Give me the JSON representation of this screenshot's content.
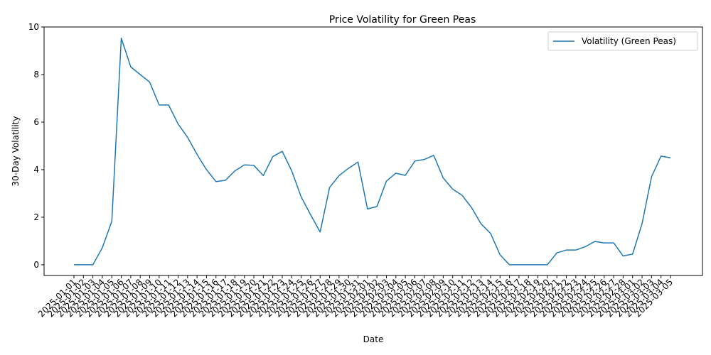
{
  "chart_data": {
    "type": "line",
    "title": "Price Volatility for Green Peas",
    "xlabel": "Date",
    "ylabel": "30-Day Volatility",
    "ylim": [
      -0.45,
      10
    ],
    "yticks": [
      0,
      2,
      4,
      6,
      8,
      10
    ],
    "grid": false,
    "legend_position": "top-right",
    "x": [
      "2025-01-01",
      "2025-01-02",
      "2025-01-03",
      "2025-01-04",
      "2025-01-05",
      "2025-01-06",
      "2025-01-07",
      "2025-01-08",
      "2025-01-09",
      "2025-01-10",
      "2025-01-11",
      "2025-01-12",
      "2025-01-13",
      "2025-01-14",
      "2025-01-15",
      "2025-01-16",
      "2025-01-17",
      "2025-01-18",
      "2025-01-19",
      "2025-01-20",
      "2025-01-21",
      "2025-01-22",
      "2025-01-23",
      "2025-01-24",
      "2025-01-25",
      "2025-01-26",
      "2025-01-27",
      "2025-01-28",
      "2025-01-29",
      "2025-01-30",
      "2025-01-31",
      "2025-02-01",
      "2025-02-02",
      "2025-02-03",
      "2025-02-04",
      "2025-02-05",
      "2025-02-06",
      "2025-02-07",
      "2025-02-08",
      "2025-02-09",
      "2025-02-10",
      "2025-02-11",
      "2025-02-12",
      "2025-02-13",
      "2025-02-14",
      "2025-02-15",
      "2025-02-16",
      "2025-02-17",
      "2025-02-18",
      "2025-02-19",
      "2025-02-20",
      "2025-02-21",
      "2025-02-22",
      "2025-02-23",
      "2025-02-24",
      "2025-02-25",
      "2025-02-26",
      "2025-02-27",
      "2025-02-28",
      "2025-03-01",
      "2025-03-02",
      "2025-03-03",
      "2025-03-04",
      "2025-03-05"
    ],
    "series": [
      {
        "name": "Volatility (Green Peas)",
        "color": "#1f77b4",
        "values": [
          0.0,
          0.0,
          0.0,
          0.72,
          1.83,
          9.53,
          8.32,
          8.0,
          7.68,
          6.72,
          6.72,
          5.92,
          5.36,
          4.64,
          4.0,
          3.5,
          3.55,
          3.95,
          4.2,
          4.18,
          3.75,
          4.55,
          4.77,
          3.95,
          2.85,
          2.1,
          1.38,
          3.25,
          3.75,
          4.06,
          4.32,
          2.35,
          2.45,
          3.52,
          3.85,
          3.76,
          4.36,
          4.43,
          4.6,
          3.65,
          3.18,
          2.92,
          2.4,
          1.72,
          1.32,
          0.42,
          0.0,
          0.0,
          0.0,
          0.0,
          0.0,
          0.5,
          0.62,
          0.62,
          0.76,
          0.98,
          0.92,
          0.92,
          0.37,
          0.45,
          1.73,
          3.7,
          4.57,
          4.5
        ]
      }
    ]
  }
}
